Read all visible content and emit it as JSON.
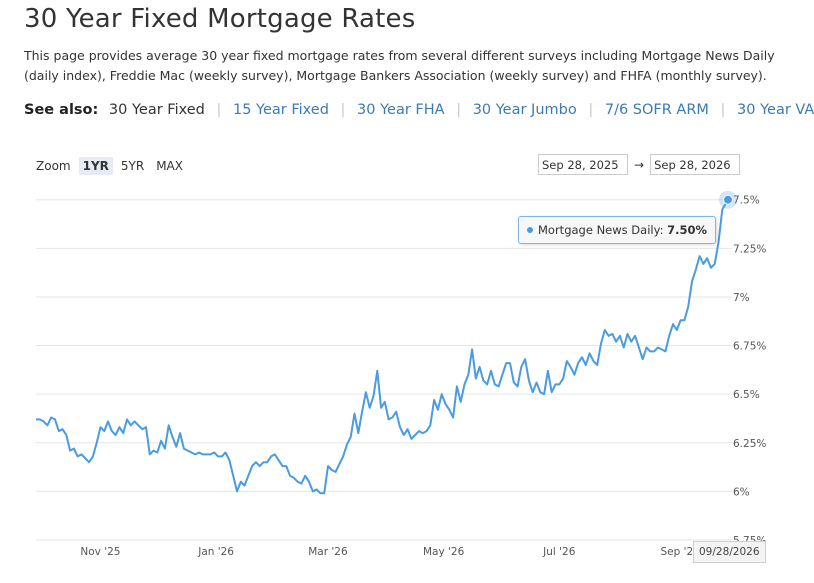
{
  "header": {
    "title": "30 Year Fixed Mortgage Rates",
    "description": "This page provides average 30 year fixed mortgage rates from several different surveys including Mortgage News Daily (daily index), Freddie Mac (weekly survey), Mortgage Bankers Association (weekly survey) and FHFA (monthly survey)."
  },
  "see_also": {
    "label": "See also:",
    "current": "30 Year Fixed",
    "links": [
      "15 Year Fixed",
      "30 Year FHA",
      "30 Year Jumbo",
      "7/6 SOFR ARM",
      "30 Year VA"
    ]
  },
  "zoom": {
    "label": "Zoom",
    "options": [
      "1YR",
      "5YR",
      "MAX"
    ],
    "active": "1YR"
  },
  "range": {
    "from": "Sep 28, 2025",
    "to": "Sep 28, 2026",
    "arrow": "→"
  },
  "tooltip": {
    "series": "Mortgage News Daily:",
    "value": "7.50%"
  },
  "crosshair_date": "09/28/2026",
  "colors": {
    "line": "#4a9be0",
    "grid": "#e6e6e6",
    "link": "#3b7ab6"
  },
  "chart_data": {
    "type": "line",
    "x_type": "date",
    "xlim": [
      "2025-09-28",
      "2026-09-28"
    ],
    "ylim": [
      5.75,
      7.55
    ],
    "y_ticks": [
      5.75,
      6,
      6.25,
      6.5,
      6.75,
      7,
      7.25,
      7.5
    ],
    "y_tick_labels": [
      "5.75%",
      "6%",
      "6.25%",
      "6.5%",
      "6.75%",
      "7%",
      "7.25%",
      "7.5%"
    ],
    "x_ticks": [
      "2025-11-01",
      "2026-01-01",
      "2026-03-01",
      "2026-05-01",
      "2026-07-01",
      "2026-09-01"
    ],
    "x_tick_labels": [
      "Nov '25",
      "Jan '26",
      "Mar '26",
      "May '26",
      "Jul '26",
      "Sep '2"
    ],
    "grid": true,
    "series": [
      {
        "name": "Mortgage News Daily",
        "points": [
          [
            "2025-09-28",
            6.37
          ],
          [
            "2025-09-30",
            6.37
          ],
          [
            "2025-10-02",
            6.36
          ],
          [
            "2025-10-04",
            6.34
          ],
          [
            "2025-10-06",
            6.38
          ],
          [
            "2025-10-08",
            6.37
          ],
          [
            "2025-10-10",
            6.31
          ],
          [
            "2025-10-12",
            6.32
          ],
          [
            "2025-10-14",
            6.29
          ],
          [
            "2025-10-16",
            6.21
          ],
          [
            "2025-10-18",
            6.22
          ],
          [
            "2025-10-20",
            6.18
          ],
          [
            "2025-10-22",
            6.19
          ],
          [
            "2025-10-24",
            6.17
          ],
          [
            "2025-10-26",
            6.15
          ],
          [
            "2025-10-28",
            6.18
          ],
          [
            "2025-10-30",
            6.25
          ],
          [
            "2025-11-01",
            6.33
          ],
          [
            "2025-11-03",
            6.31
          ],
          [
            "2025-11-05",
            6.36
          ],
          [
            "2025-11-07",
            6.31
          ],
          [
            "2025-11-09",
            6.29
          ],
          [
            "2025-11-11",
            6.33
          ],
          [
            "2025-11-13",
            6.3
          ],
          [
            "2025-11-15",
            6.37
          ],
          [
            "2025-11-17",
            6.34
          ],
          [
            "2025-11-19",
            6.36
          ],
          [
            "2025-11-21",
            6.34
          ],
          [
            "2025-11-23",
            6.32
          ],
          [
            "2025-11-25",
            6.33
          ],
          [
            "2025-11-27",
            6.19
          ],
          [
            "2025-11-29",
            6.21
          ],
          [
            "2025-12-01",
            6.2
          ],
          [
            "2025-12-03",
            6.26
          ],
          [
            "2025-12-05",
            6.22
          ],
          [
            "2025-12-07",
            6.34
          ],
          [
            "2025-12-09",
            6.28
          ],
          [
            "2025-12-11",
            6.23
          ],
          [
            "2025-12-13",
            6.3
          ],
          [
            "2025-12-15",
            6.22
          ],
          [
            "2025-12-17",
            6.21
          ],
          [
            "2025-12-19",
            6.2
          ],
          [
            "2025-12-21",
            6.19
          ],
          [
            "2025-12-23",
            6.2
          ],
          [
            "2025-12-25",
            6.19
          ],
          [
            "2025-12-27",
            6.19
          ],
          [
            "2025-12-29",
            6.19
          ],
          [
            "2025-12-31",
            6.2
          ],
          [
            "2026-01-02",
            6.18
          ],
          [
            "2026-01-04",
            6.18
          ],
          [
            "2026-01-06",
            6.2
          ],
          [
            "2026-01-08",
            6.16
          ],
          [
            "2026-01-10",
            6.08
          ],
          [
            "2026-01-12",
            6
          ],
          [
            "2026-01-14",
            6.05
          ],
          [
            "2026-01-16",
            6.03
          ],
          [
            "2026-01-18",
            6.08
          ],
          [
            "2026-01-20",
            6.13
          ],
          [
            "2026-01-22",
            6.15
          ],
          [
            "2026-01-24",
            6.13
          ],
          [
            "2026-01-26",
            6.15
          ],
          [
            "2026-01-28",
            6.15
          ],
          [
            "2026-01-30",
            6.18
          ],
          [
            "2026-02-01",
            6.19
          ],
          [
            "2026-02-03",
            6.16
          ],
          [
            "2026-02-05",
            6.13
          ],
          [
            "2026-02-07",
            6.13
          ],
          [
            "2026-02-09",
            6.08
          ],
          [
            "2026-02-11",
            6.07
          ],
          [
            "2026-02-13",
            6.05
          ],
          [
            "2026-02-15",
            6.04
          ],
          [
            "2026-02-17",
            6.08
          ],
          [
            "2026-02-19",
            6.05
          ],
          [
            "2026-02-21",
            6
          ],
          [
            "2026-02-23",
            6.01
          ],
          [
            "2026-02-25",
            5.99
          ],
          [
            "2026-02-27",
            5.99
          ],
          [
            "2026-03-01",
            6.13
          ],
          [
            "2026-03-03",
            6.11
          ],
          [
            "2026-03-05",
            6.1
          ],
          [
            "2026-03-07",
            6.14
          ],
          [
            "2026-03-09",
            6.18
          ],
          [
            "2026-03-11",
            6.24
          ],
          [
            "2026-03-13",
            6.28
          ],
          [
            "2026-03-15",
            6.4
          ],
          [
            "2026-03-17",
            6.3
          ],
          [
            "2026-03-19",
            6.41
          ],
          [
            "2026-03-21",
            6.51
          ],
          [
            "2026-03-23",
            6.43
          ],
          [
            "2026-03-25",
            6.49
          ],
          [
            "2026-03-27",
            6.62
          ],
          [
            "2026-03-29",
            6.43
          ],
          [
            "2026-03-31",
            6.46
          ],
          [
            "2026-04-02",
            6.37
          ],
          [
            "2026-04-04",
            6.38
          ],
          [
            "2026-04-06",
            6.41
          ],
          [
            "2026-04-08",
            6.33
          ],
          [
            "2026-04-10",
            6.29
          ],
          [
            "2026-04-12",
            6.32
          ],
          [
            "2026-04-14",
            6.27
          ],
          [
            "2026-04-16",
            6.29
          ],
          [
            "2026-04-18",
            6.31
          ],
          [
            "2026-04-20",
            6.3
          ],
          [
            "2026-04-22",
            6.31
          ],
          [
            "2026-04-24",
            6.34
          ],
          [
            "2026-04-26",
            6.47
          ],
          [
            "2026-04-28",
            6.42
          ],
          [
            "2026-04-30",
            6.5
          ],
          [
            "2026-05-02",
            6.45
          ],
          [
            "2026-05-04",
            6.42
          ],
          [
            "2026-05-06",
            6.38
          ],
          [
            "2026-05-08",
            6.54
          ],
          [
            "2026-05-10",
            6.46
          ],
          [
            "2026-05-12",
            6.55
          ],
          [
            "2026-05-14",
            6.6
          ],
          [
            "2026-05-16",
            6.73
          ],
          [
            "2026-05-18",
            6.58
          ],
          [
            "2026-05-20",
            6.64
          ],
          [
            "2026-05-22",
            6.57
          ],
          [
            "2026-05-24",
            6.55
          ],
          [
            "2026-05-26",
            6.62
          ],
          [
            "2026-05-28",
            6.55
          ],
          [
            "2026-05-30",
            6.54
          ],
          [
            "2026-06-01",
            6.6
          ],
          [
            "2026-06-03",
            6.66
          ],
          [
            "2026-06-05",
            6.66
          ],
          [
            "2026-06-07",
            6.56
          ],
          [
            "2026-06-09",
            6.54
          ],
          [
            "2026-06-11",
            6.64
          ],
          [
            "2026-06-13",
            6.68
          ],
          [
            "2026-06-15",
            6.57
          ],
          [
            "2026-06-17",
            6.51
          ],
          [
            "2026-06-19",
            6.56
          ],
          [
            "2026-06-21",
            6.51
          ],
          [
            "2026-06-23",
            6.5
          ],
          [
            "2026-06-25",
            6.62
          ],
          [
            "2026-06-27",
            6.51
          ],
          [
            "2026-06-29",
            6.55
          ],
          [
            "2026-07-01",
            6.55
          ],
          [
            "2026-07-03",
            6.58
          ],
          [
            "2026-07-05",
            6.67
          ],
          [
            "2026-07-07",
            6.64
          ],
          [
            "2026-07-09",
            6.6
          ],
          [
            "2026-07-11",
            6.66
          ],
          [
            "2026-07-13",
            6.69
          ],
          [
            "2026-07-15",
            6.65
          ],
          [
            "2026-07-17",
            6.71
          ],
          [
            "2026-07-19",
            6.67
          ],
          [
            "2026-07-21",
            6.65
          ],
          [
            "2026-07-23",
            6.76
          ],
          [
            "2026-07-25",
            6.83
          ],
          [
            "2026-07-27",
            6.8
          ],
          [
            "2026-07-29",
            6.81
          ],
          [
            "2026-07-31",
            6.77
          ],
          [
            "2026-08-02",
            6.8
          ],
          [
            "2026-08-04",
            6.74
          ],
          [
            "2026-08-06",
            6.81
          ],
          [
            "2026-08-08",
            6.77
          ],
          [
            "2026-08-10",
            6.8
          ],
          [
            "2026-08-12",
            6.74
          ],
          [
            "2026-08-14",
            6.68
          ],
          [
            "2026-08-16",
            6.74
          ],
          [
            "2026-08-18",
            6.72
          ],
          [
            "2026-08-20",
            6.72
          ],
          [
            "2026-08-22",
            6.74
          ],
          [
            "2026-08-24",
            6.73
          ],
          [
            "2026-08-26",
            6.72
          ],
          [
            "2026-08-28",
            6.8
          ],
          [
            "2026-08-30",
            6.86
          ],
          [
            "2026-09-01",
            6.83
          ],
          [
            "2026-09-03",
            6.88
          ],
          [
            "2026-09-05",
            6.88
          ],
          [
            "2026-09-07",
            6.95
          ],
          [
            "2026-09-09",
            7.08
          ],
          [
            "2026-09-11",
            7.14
          ],
          [
            "2026-09-13",
            7.21
          ],
          [
            "2026-09-15",
            7.17
          ],
          [
            "2026-09-17",
            7.2
          ],
          [
            "2026-09-19",
            7.15
          ],
          [
            "2026-09-21",
            7.17
          ],
          [
            "2026-09-23",
            7.28
          ],
          [
            "2026-09-25",
            7.45
          ],
          [
            "2026-09-28",
            7.5
          ]
        ]
      }
    ]
  }
}
